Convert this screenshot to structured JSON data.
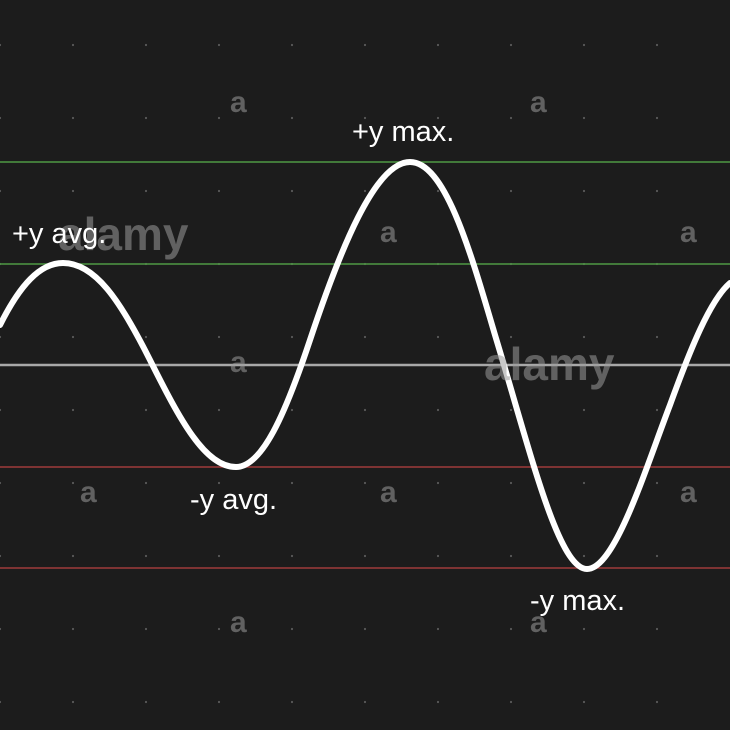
{
  "colors": {
    "background": "#1c1c1c",
    "grid_dot": "#5a5a5a",
    "wave": "#ffffff",
    "max_avg_positive_line": "#4f9a45",
    "zero_line": "#a8a8a8",
    "negative_line": "#9e3b3b",
    "label": "#ffffff",
    "watermark": "#9a9a9a"
  },
  "labels": {
    "pos_avg": "+y avg.",
    "pos_max": "+y max.",
    "neg_avg": "-y avg.",
    "neg_max": "-y max."
  },
  "watermark": {
    "brand": "alamy",
    "mark": "a"
  }
}
